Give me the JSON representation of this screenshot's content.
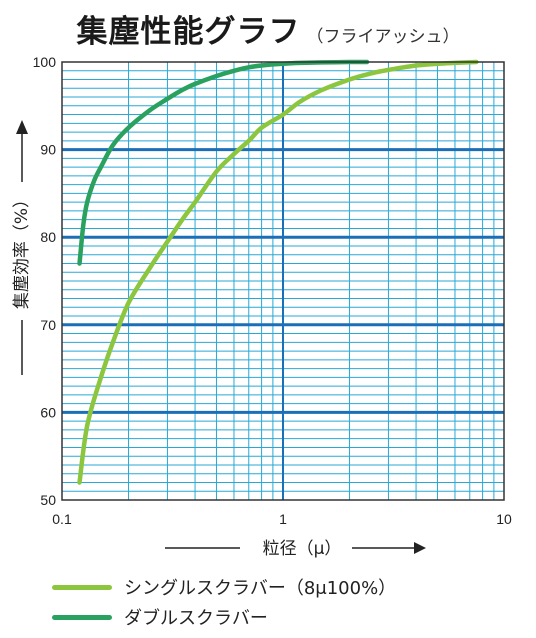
{
  "title": "集塵性能グラフ",
  "subtitle": "（フライアッシュ）",
  "chart_data": {
    "type": "line",
    "xscale": "log",
    "xlim": [
      0.1,
      10
    ],
    "ylim": [
      50,
      100
    ],
    "xlabel": "粒径（μ）",
    "ylabel": "集塵効率（%）",
    "xticks": [
      "0.1",
      "1",
      "10"
    ],
    "yticks": [
      "50",
      "60",
      "70",
      "80",
      "90",
      "100"
    ],
    "grid": true,
    "series": [
      {
        "name": "シングルスクラバー（8μ100%）",
        "color": "#8cc63f",
        "x": [
          0.12,
          0.13,
          0.15,
          0.17,
          0.2,
          0.25,
          0.3,
          0.35,
          0.4,
          0.5,
          0.6,
          0.7,
          0.8,
          1.0,
          1.2,
          1.5,
          2.0,
          2.5,
          3.0,
          4.0,
          5.0,
          6.0,
          7.5
        ],
        "values": [
          52,
          58.5,
          64,
          68,
          72.5,
          76.5,
          79.5,
          82,
          84,
          87.5,
          89.5,
          91,
          92.5,
          94,
          95.5,
          96.8,
          98,
          98.7,
          99.1,
          99.6,
          99.8,
          99.9,
          100
        ]
      },
      {
        "name": "ダブルスクラバー",
        "color": "#2aa15e",
        "x": [
          0.12,
          0.125,
          0.13,
          0.14,
          0.15,
          0.17,
          0.2,
          0.25,
          0.3,
          0.35,
          0.4,
          0.5,
          0.6,
          0.7,
          0.8,
          1.0,
          1.2,
          1.5,
          2.0,
          2.4
        ],
        "values": [
          77,
          81.5,
          84,
          86.5,
          88,
          90.5,
          92.5,
          94.5,
          95.8,
          96.8,
          97.5,
          98.4,
          99,
          99.4,
          99.6,
          99.8,
          99.9,
          99.95,
          100,
          100
        ]
      }
    ]
  },
  "colors": {
    "plot_background": "#ffffff",
    "minor_grid": "#29a8d6",
    "major_grid": "#1b6fb8",
    "frame": "#333333"
  }
}
